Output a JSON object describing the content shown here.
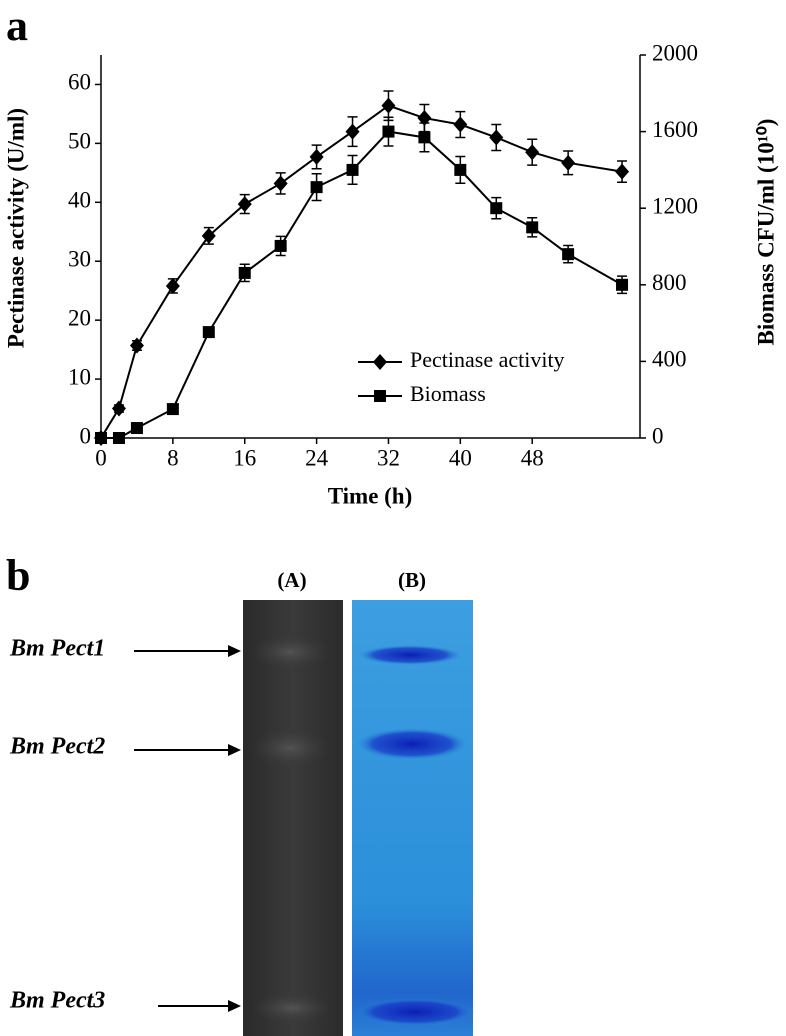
{
  "chart_data": {
    "type": "line",
    "panel_label": "a",
    "x_label": "Time (h)",
    "y_label": "Pectinase activity  (U/ml)",
    "y2_label": "Biomass CFU/ml (10¹⁰)",
    "x": [
      0,
      2,
      4,
      8,
      12,
      16,
      20,
      24,
      28,
      32,
      36,
      40,
      44,
      48,
      52,
      58
    ],
    "xlim": [
      0,
      60
    ],
    "xticks": [
      0,
      8,
      16,
      24,
      32,
      40,
      48
    ],
    "ylim": [
      0,
      65
    ],
    "yticks": [
      0,
      10,
      20,
      30,
      40,
      50,
      60
    ],
    "y2lim": [
      0,
      2000
    ],
    "y2ticks": [
      0,
      400,
      800,
      1200,
      1600,
      2000
    ],
    "legend": "lower right",
    "series": [
      {
        "name": "Pectinase activity",
        "color": "#000000",
        "marker": "diamond",
        "axis": "y",
        "values": [
          0,
          5,
          15.7,
          25.8,
          34.3,
          39.7,
          43.2,
          47.7,
          52,
          56.4,
          54.3,
          53.2,
          51,
          48.5,
          46.7,
          45.2
        ],
        "errors": [
          0.5,
          0.6,
          0.8,
          1.2,
          1.4,
          1.6,
          1.8,
          2,
          2.5,
          2.5,
          2.3,
          2.2,
          2.2,
          2.2,
          2,
          1.8
        ]
      },
      {
        "name": "Biomass",
        "color": "#000000",
        "marker": "square",
        "axis": "y2",
        "values": [
          0,
          0,
          52,
          151,
          553,
          862,
          1003,
          1310,
          1400,
          1600,
          1570,
          1400,
          1200,
          1100,
          960,
          800
        ],
        "errors": [
          10,
          10,
          15,
          20,
          25,
          45,
          50,
          70,
          75,
          75,
          75,
          70,
          55,
          50,
          45,
          45
        ]
      }
    ]
  },
  "gel": {
    "panel_label": "b",
    "lanes": [
      "(A)",
      "(B)"
    ],
    "bands": [
      "Bm Pect1",
      "Bm Pect2",
      "Bm Pect3"
    ]
  }
}
